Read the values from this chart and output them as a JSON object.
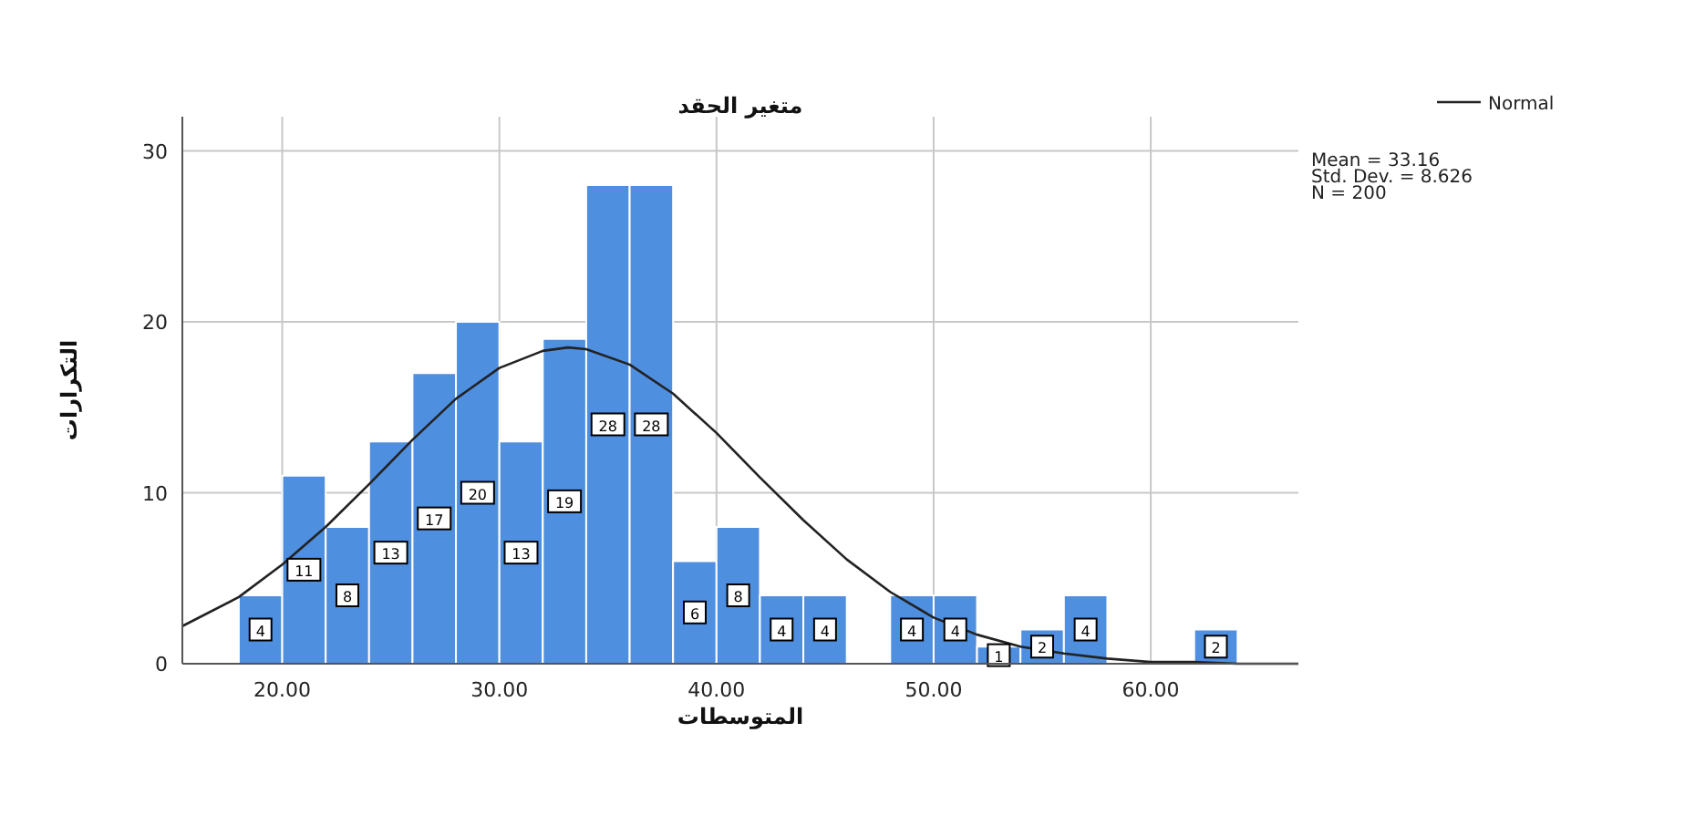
{
  "chart_data": {
    "type": "histogram",
    "title": "متغير الحقد",
    "xlabel": "المتوسطات",
    "ylabel": "التكرارات",
    "series": [
      {
        "color": "#4f8fe0",
        "bins": [
          18,
          20,
          22,
          24,
          26,
          28,
          30,
          32,
          34,
          36,
          38,
          40,
          42,
          44,
          46,
          48,
          50,
          52,
          54,
          56,
          58,
          60,
          62,
          64
        ],
        "values": [
          4,
          11,
          8,
          13,
          17,
          20,
          13,
          19,
          28,
          28,
          6,
          8,
          4,
          4,
          0,
          4,
          4,
          1,
          2,
          4,
          0,
          0,
          2
        ],
        "value_labels": [
          "4",
          "11",
          "8",
          "13",
          "17",
          "20",
          "13",
          "19",
          "28",
          "28",
          "6",
          "8",
          "4",
          "4",
          null,
          "4",
          "4",
          "1",
          "2",
          "4",
          null,
          null,
          "2"
        ]
      },
      {
        "type": "line",
        "name": "Normal",
        "color": "#222222",
        "x": [
          15.4,
          18,
          20,
          22,
          24,
          26,
          28,
          30,
          32,
          33.16,
          34,
          36,
          38,
          40,
          42,
          44,
          46,
          48,
          50,
          52,
          54,
          56,
          58,
          60,
          62,
          64,
          66.8
        ],
        "values": [
          2.2,
          3.9,
          5.8,
          8.0,
          10.5,
          13.1,
          15.5,
          17.3,
          18.3,
          18.5,
          18.4,
          17.5,
          15.8,
          13.5,
          10.9,
          8.4,
          6.1,
          4.2,
          2.7,
          1.7,
          1.0,
          0.6,
          0.3,
          0.1,
          0.1,
          0,
          0
        ]
      }
    ],
    "annotations": [
      "Mean = 33.16",
      "Std. Dev. = 8.626",
      "N = 200"
    ],
    "xlim": [
      15.4,
      66.8
    ],
    "ylim": [
      0,
      32
    ],
    "xticks": [
      {
        "value": 20,
        "label": "20.00"
      },
      {
        "value": 30,
        "label": "30.00"
      },
      {
        "value": 40,
        "label": "40.00"
      },
      {
        "value": 50,
        "label": "50.00"
      },
      {
        "value": 60,
        "label": "60.00"
      }
    ],
    "yticks": [
      0,
      10,
      20,
      30
    ],
    "grid": true,
    "legend": "top right"
  }
}
